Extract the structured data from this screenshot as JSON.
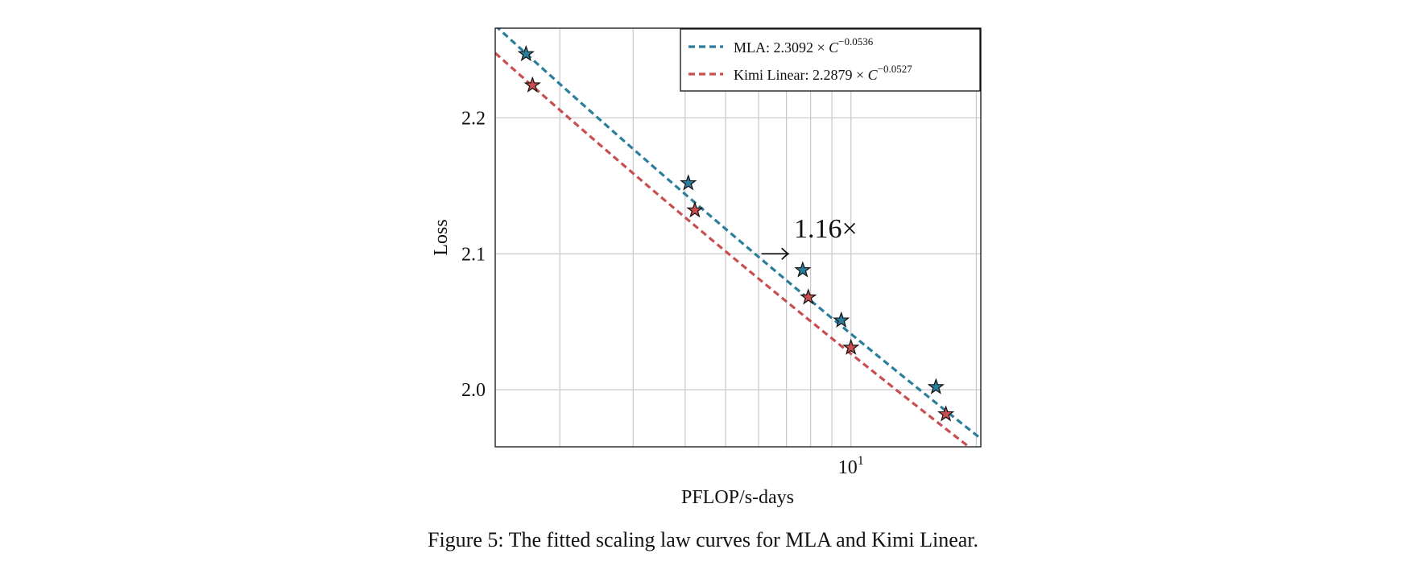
{
  "chart_data": {
    "type": "scatter",
    "xscale": "log",
    "xlabel": "PFLOP/s-days",
    "ylabel": "Loss",
    "xlim": [
      1.4,
      20.5
    ],
    "ylim": [
      1.958,
      2.266
    ],
    "xticks": [
      {
        "label": "10",
        "exp": "1",
        "value": 10
      }
    ],
    "yticks": [
      {
        "label": "2.0",
        "value": 2.0
      },
      {
        "label": "2.1",
        "value": 2.1
      },
      {
        "label": "2.2",
        "value": 2.2
      }
    ],
    "grid": true,
    "legend_position": "top-right",
    "series": [
      {
        "name_prefix": "MLA: ",
        "formula_coef": "2.3092",
        "formula_times": " × ",
        "formula_var": "C",
        "formula_exp": "−0.0536",
        "color": "#2a7d9b",
        "fit": {
          "a": 2.3092,
          "b": -0.0536
        },
        "points": [
          {
            "x": 1.66,
            "y": 2.247
          },
          {
            "x": 4.07,
            "y": 2.152
          },
          {
            "x": 7.66,
            "y": 2.088
          },
          {
            "x": 9.48,
            "y": 2.051
          },
          {
            "x": 16.0,
            "y": 2.002
          }
        ]
      },
      {
        "name_prefix": "Kimi Linear: ",
        "formula_coef": "2.2879",
        "formula_times": " × ",
        "formula_var": "C",
        "formula_exp": "−0.0527",
        "color": "#c94f4f",
        "fit": {
          "a": 2.2879,
          "b": -0.0527
        },
        "points": [
          {
            "x": 1.72,
            "y": 2.224
          },
          {
            "x": 4.22,
            "y": 2.132
          },
          {
            "x": 7.9,
            "y": 2.068
          },
          {
            "x": 10.0,
            "y": 2.031
          },
          {
            "x": 16.9,
            "y": 1.982
          }
        ]
      }
    ],
    "annotation": {
      "text": "1.16×",
      "text_x": 7.3,
      "text_y": 2.119,
      "arrow_from": {
        "x": 6.1,
        "y": 2.1
      },
      "arrow_to": {
        "x": 7.07,
        "y": 2.1
      }
    }
  },
  "caption": "Figure 5: The fitted scaling law curves for MLA and Kimi Linear."
}
